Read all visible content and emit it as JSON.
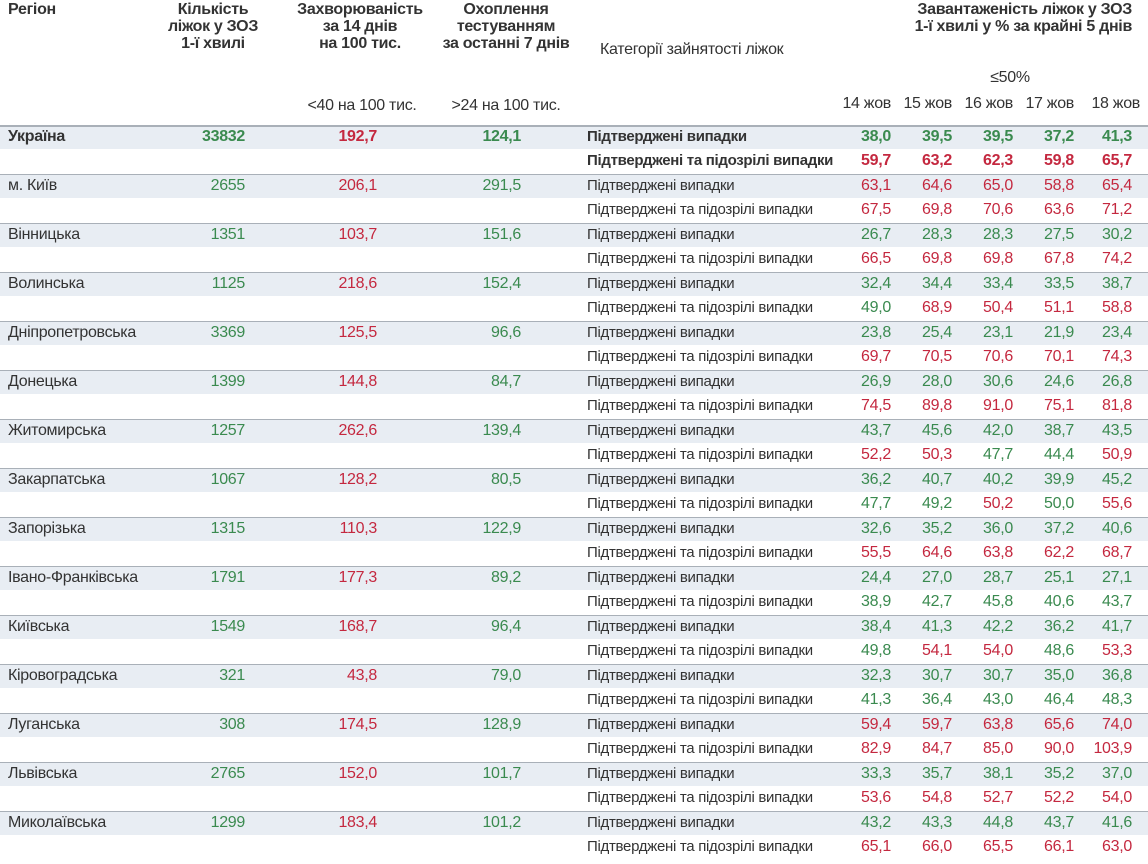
{
  "header": {
    "region": "Регіон",
    "beds": [
      "Кількість",
      "ліжок у ЗОЗ",
      "1-ї хвилі"
    ],
    "incidence": [
      "Захворюваність",
      "за 14 днів",
      "на 100 тис."
    ],
    "testing": [
      "Охоплення",
      "тестуванням",
      "за останні 7 днів"
    ],
    "category": "Категорії зайнятості ліжок",
    "occupancy": [
      "Завантаженість ліжок у ЗОЗ",
      "1-ї хвилі у % за крайні 5 днів"
    ],
    "incidence_threshold": {
      "value": 40,
      "label": "<40 на 100 тис."
    },
    "testing_threshold": {
      "value": 24,
      "label": ">24 на 100 тис."
    },
    "occupancy_threshold": {
      "value": 50,
      "label": "≤50%"
    },
    "dates": [
      "14 жов",
      "15 жов",
      "16 жов",
      "17 жов",
      "18 жов"
    ]
  },
  "categories": [
    "Підтверджені випадки",
    "Підтверджені та підозрілі випадки"
  ],
  "colors": {
    "good": "#3a8a4f",
    "bad": "#c4283f",
    "text": "#333333",
    "band": "#e8edf3",
    "rule": "#a9b0b8"
  },
  "table": {
    "rows": [
      {
        "region": "Україна",
        "beds": "33832",
        "incidence": "192,7",
        "testing": "124,1",
        "confirmed": [
          "38,0",
          "39,5",
          "39,5",
          "37,2",
          "41,3"
        ],
        "suspected": [
          "59,7",
          "63,2",
          "62,3",
          "59,8",
          "65,7"
        ]
      },
      {
        "region": "м. Київ",
        "beds": "2655",
        "incidence": "206,1",
        "testing": "291,5",
        "confirmed": [
          "63,1",
          "64,6",
          "65,0",
          "58,8",
          "65,4"
        ],
        "suspected": [
          "67,5",
          "69,8",
          "70,6",
          "63,6",
          "71,2"
        ]
      },
      {
        "region": "Вінницька",
        "beds": "1351",
        "incidence": "103,7",
        "testing": "151,6",
        "confirmed": [
          "26,7",
          "28,3",
          "28,3",
          "27,5",
          "30,2"
        ],
        "suspected": [
          "66,5",
          "69,8",
          "69,8",
          "67,8",
          "74,2"
        ]
      },
      {
        "region": "Волинська",
        "beds": "1125",
        "incidence": "218,6",
        "testing": "152,4",
        "confirmed": [
          "32,4",
          "34,4",
          "33,4",
          "33,5",
          "38,7"
        ],
        "suspected": [
          "49,0",
          "68,9",
          "50,4",
          "51,1",
          "58,8"
        ]
      },
      {
        "region": "Дніпропетровська",
        "beds": "3369",
        "incidence": "125,5",
        "testing": "96,6",
        "confirmed": [
          "23,8",
          "25,4",
          "23,1",
          "21,9",
          "23,4"
        ],
        "suspected": [
          "69,7",
          "70,5",
          "70,6",
          "70,1",
          "74,3"
        ]
      },
      {
        "region": "Донецька",
        "beds": "1399",
        "incidence": "144,8",
        "testing": "84,7",
        "confirmed": [
          "26,9",
          "28,0",
          "30,6",
          "24,6",
          "26,8"
        ],
        "suspected": [
          "74,5",
          "89,8",
          "91,0",
          "75,1",
          "81,8"
        ]
      },
      {
        "region": "Житомирська",
        "beds": "1257",
        "incidence": "262,6",
        "testing": "139,4",
        "confirmed": [
          "43,7",
          "45,6",
          "42,0",
          "38,7",
          "43,5"
        ],
        "suspected": [
          "52,2",
          "50,3",
          "47,7",
          "44,4",
          "50,9"
        ]
      },
      {
        "region": "Закарпатська",
        "beds": "1067",
        "incidence": "128,2",
        "testing": "80,5",
        "confirmed": [
          "36,2",
          "40,7",
          "40,2",
          "39,9",
          "45,2"
        ],
        "suspected": [
          "47,7",
          "49,2",
          "50,2",
          "50,0",
          "55,6"
        ]
      },
      {
        "region": "Запорізька",
        "beds": "1315",
        "incidence": "110,3",
        "testing": "122,9",
        "confirmed": [
          "32,6",
          "35,2",
          "36,0",
          "37,2",
          "40,6"
        ],
        "suspected": [
          "55,5",
          "64,6",
          "63,8",
          "62,2",
          "68,7"
        ]
      },
      {
        "region": "Івано-Франківська",
        "beds": "1791",
        "incidence": "177,3",
        "testing": "89,2",
        "confirmed": [
          "24,4",
          "27,0",
          "28,7",
          "25,1",
          "27,1"
        ],
        "suspected": [
          "38,9",
          "42,7",
          "45,8",
          "40,6",
          "43,7"
        ]
      },
      {
        "region": "Київська",
        "beds": "1549",
        "incidence": "168,7",
        "testing": "96,4",
        "confirmed": [
          "38,4",
          "41,3",
          "42,2",
          "36,2",
          "41,7"
        ],
        "suspected": [
          "49,8",
          "54,1",
          "54,0",
          "48,6",
          "53,3"
        ]
      },
      {
        "region": "Кіровоградська",
        "beds": "321",
        "incidence": "43,8",
        "testing": "79,0",
        "confirmed": [
          "32,3",
          "30,7",
          "30,7",
          "35,0",
          "36,8"
        ],
        "suspected": [
          "41,3",
          "36,4",
          "43,0",
          "46,4",
          "48,3"
        ]
      },
      {
        "region": "Луганська",
        "beds": "308",
        "incidence": "174,5",
        "testing": "128,9",
        "confirmed": [
          "59,4",
          "59,7",
          "63,8",
          "65,6",
          "74,0"
        ],
        "suspected": [
          "82,9",
          "84,7",
          "85,0",
          "90,0",
          "103,9"
        ]
      },
      {
        "region": "Львівська",
        "beds": "2765",
        "incidence": "152,0",
        "testing": "101,7",
        "confirmed": [
          "33,3",
          "35,7",
          "38,1",
          "35,2",
          "37,0"
        ],
        "suspected": [
          "53,6",
          "54,8",
          "52,7",
          "52,2",
          "54,0"
        ]
      },
      {
        "region": "Миколаївська",
        "beds": "1299",
        "incidence": "183,4",
        "testing": "101,2",
        "confirmed": [
          "43,2",
          "43,3",
          "44,8",
          "43,7",
          "41,6"
        ],
        "suspected": [
          "65,1",
          "66,0",
          "65,5",
          "66,1",
          "63,0"
        ]
      }
    ]
  }
}
